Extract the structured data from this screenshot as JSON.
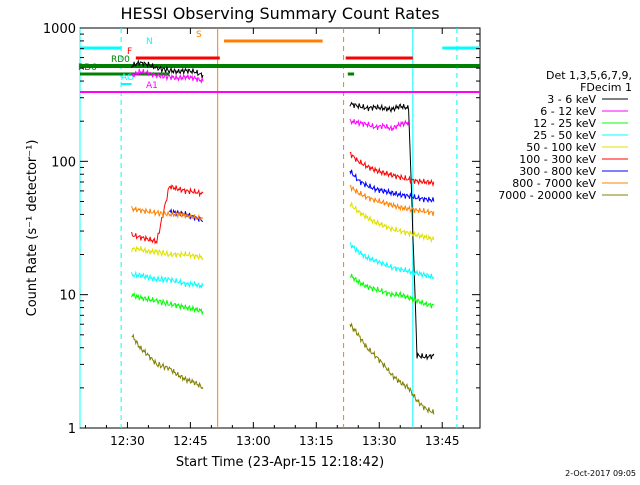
{
  "chart_data": {
    "type": "line",
    "title": "HESSI Observing Summary Count Rates",
    "xlabel": "Start Time (23-Apr-15 12:18:42)",
    "ylabel": "Count Rate (s⁻¹ detector⁻¹)",
    "y_scale": "log",
    "ylim": [
      1,
      1000
    ],
    "xlim": [
      "12:18:42",
      "13:54:00"
    ],
    "x_ticks": [
      "12:30",
      "12:45",
      "13:00",
      "13:15",
      "13:30",
      "13:45"
    ],
    "y_ticks": [
      "1",
      "10",
      "100",
      "1000"
    ],
    "grid": false,
    "legend_position": "right",
    "legend_title_lines": [
      "Det 1,3,5,6,7,9,",
      "FDecim 1"
    ],
    "series": [
      {
        "name": "3 - 6 keV",
        "color": "#000000",
        "x": [
          "12:31",
          "12:33",
          "12:35",
          "12:37",
          "12:40",
          "12:42",
          "12:44",
          "12:46",
          "12:48",
          "13:23",
          "13:25",
          "13:27",
          "13:29",
          "13:31",
          "13:33",
          "13:35",
          "13:37",
          "13:39",
          "13:41",
          "13:43"
        ],
        "y": [
          520,
          550,
          530,
          500,
          480,
          470,
          480,
          470,
          440,
          270,
          260,
          250,
          255,
          250,
          245,
          260,
          250,
          3.5,
          3.4,
          3.5
        ]
      },
      {
        "name": "6 - 12 keV",
        "color": "#ff00ff",
        "x": [
          "12:31",
          "12:33",
          "12:35",
          "12:37",
          "12:40",
          "12:42",
          "12:44",
          "12:46",
          "12:48",
          "13:23",
          "13:25",
          "13:27",
          "13:29",
          "13:31",
          "13:33",
          "13:35",
          "13:37"
        ],
        "y": [
          440,
          470,
          460,
          440,
          430,
          420,
          430,
          420,
          400,
          200,
          195,
          190,
          180,
          185,
          175,
          190,
          195
        ]
      },
      {
        "name": "12 - 25 keV",
        "color": "#00ff00",
        "x": [
          "12:31",
          "12:33",
          "12:35",
          "12:37",
          "12:40",
          "12:42",
          "12:44",
          "12:46",
          "12:48",
          "13:23",
          "13:25",
          "13:27",
          "13:29",
          "13:31",
          "13:33",
          "13:35",
          "13:37",
          "13:39",
          "13:41",
          "13:43"
        ],
        "y": [
          10,
          9.5,
          9.2,
          9.0,
          8.5,
          8.3,
          8.0,
          7.8,
          7.5,
          14,
          12.5,
          11.5,
          11,
          10.5,
          10,
          10,
          9.5,
          9,
          8.5,
          8.3
        ]
      },
      {
        "name": "25 - 50 keV",
        "color": "#00ffff",
        "x": [
          "12:31",
          "12:33",
          "12:35",
          "12:37",
          "12:40",
          "12:42",
          "12:44",
          "12:46",
          "12:48",
          "13:23",
          "13:25",
          "13:27",
          "13:29",
          "13:31",
          "13:33",
          "13:35",
          "13:37",
          "13:39",
          "13:41",
          "13:43"
        ],
        "y": [
          14,
          14,
          13.5,
          13,
          13,
          12.5,
          12,
          12,
          11.5,
          24,
          21,
          19,
          18,
          17,
          16,
          15.5,
          15,
          14.5,
          14,
          13.5
        ]
      },
      {
        "name": "50 - 100 keV",
        "color": "#e0e000",
        "x": [
          "12:31",
          "12:33",
          "12:35",
          "12:37",
          "12:40",
          "12:42",
          "12:44",
          "12:46",
          "12:48",
          "13:23",
          "13:25",
          "13:27",
          "13:29",
          "13:31",
          "13:33",
          "13:35",
          "13:37",
          "13:39",
          "13:41",
          "13:43"
        ],
        "y": [
          22,
          22,
          21,
          21,
          20,
          20,
          20,
          19.5,
          19,
          48,
          42,
          38,
          35,
          33,
          31,
          30,
          29,
          28,
          27,
          26
        ]
      },
      {
        "name": "100 - 300 keV",
        "color": "#ff0000",
        "x": [
          "12:31",
          "12:33",
          "12:35",
          "12:37",
          "12:40",
          "12:42",
          "12:44",
          "12:46",
          "12:48",
          "13:23",
          "13:25",
          "13:27",
          "13:29",
          "13:31",
          "13:33",
          "13:35",
          "13:37",
          "13:39",
          "13:41",
          "13:43"
        ],
        "y": [
          28,
          27,
          26,
          25,
          65,
          62,
          60,
          59,
          57,
          115,
          100,
          92,
          86,
          82,
          79,
          76,
          73,
          71,
          70,
          69
        ]
      },
      {
        "name": "300 - 800 keV",
        "color": "#0000ff",
        "x": [
          "12:40",
          "12:42",
          "12:44",
          "12:46",
          "12:48",
          "13:23",
          "13:25",
          "13:27",
          "13:29",
          "13:31",
          "13:33",
          "13:35",
          "13:37",
          "13:39",
          "13:41",
          "13:43"
        ],
        "y": [
          42,
          41,
          40,
          38,
          36,
          85,
          72,
          66,
          62,
          60,
          58,
          56,
          55,
          53,
          52,
          51
        ]
      },
      {
        "name": "800 - 7000 keV",
        "color": "#ff8000",
        "x": [
          "12:31",
          "12:33",
          "12:35",
          "12:37",
          "12:40",
          "12:42",
          "12:44",
          "12:46",
          "12:48",
          "13:23",
          "13:25",
          "13:27",
          "13:29",
          "13:31",
          "13:33",
          "13:35",
          "13:37",
          "13:39",
          "13:41",
          "13:43"
        ],
        "y": [
          44,
          43,
          42,
          41,
          40,
          40,
          39,
          38,
          37,
          65,
          58,
          54,
          51,
          49,
          47,
          45,
          44,
          43,
          42,
          41
        ]
      },
      {
        "name": "7000 - 20000 keV",
        "color": "#808000",
        "x": [
          "12:31",
          "12:33",
          "12:35",
          "12:37",
          "12:40",
          "12:42",
          "12:44",
          "12:46",
          "12:48",
          "13:23",
          "13:25",
          "13:27",
          "13:29",
          "13:31",
          "13:33",
          "13:35",
          "13:37",
          "13:39",
          "13:41",
          "13:43"
        ],
        "y": [
          5,
          4,
          3.5,
          3,
          2.8,
          2.5,
          2.3,
          2.2,
          2.0,
          6,
          5,
          4,
          3.5,
          3,
          2.5,
          2.2,
          2.0,
          1.6,
          1.4,
          1.3
        ]
      }
    ],
    "flags": [
      {
        "label": "N",
        "color": "#00ffff",
        "segments": [
          [
            "12:18:42",
            "12:28:30"
          ],
          [
            "13:45:00",
            "13:54:00"
          ]
        ]
      },
      {
        "label": "S",
        "color": "#ff8000",
        "segments": [
          [
            "12:53:00",
            "13:16:30"
          ]
        ]
      },
      {
        "label": "F",
        "color": "#ff0000",
        "segments": [
          [
            "12:32:00",
            "12:52:00"
          ],
          [
            "13:22:00",
            "13:38:00"
          ]
        ]
      },
      {
        "label": "RD0",
        "color": "#008000",
        "segments": [
          [
            "12:18:42",
            "13:54:00"
          ]
        ]
      },
      {
        "label": "RD6",
        "color": "#008000",
        "segments": [
          [
            "12:18:42",
            "12:40:00"
          ],
          [
            "13:22:30",
            "13:24:00"
          ]
        ]
      },
      {
        "label": "AO",
        "color": "#00ffff",
        "segments": [
          [
            "12:28:30",
            "12:31:00"
          ]
        ]
      },
      {
        "label": "A1",
        "color": "#ff00ff",
        "segments": [
          [
            "12:18:42",
            "13:54:00"
          ]
        ]
      }
    ],
    "vertical_markers": [
      {
        "time": "12:18:42",
        "color": "#00ffff",
        "dash": "solid"
      },
      {
        "time": "12:28:30",
        "color": "#00ffff",
        "dash": "dashed"
      },
      {
        "time": "12:51:30",
        "color": "#ff8000",
        "dash": "solid"
      },
      {
        "time": "13:21:30",
        "color": "#ff8000",
        "dash": "dashed"
      },
      {
        "time": "13:38:00",
        "color": "#00ffff",
        "dash": "solid"
      },
      {
        "time": "13:48:30",
        "color": "#00ffff",
        "dash": "dashed"
      }
    ]
  },
  "footer": {
    "timestamp": "2-Oct-2017 09:05"
  }
}
